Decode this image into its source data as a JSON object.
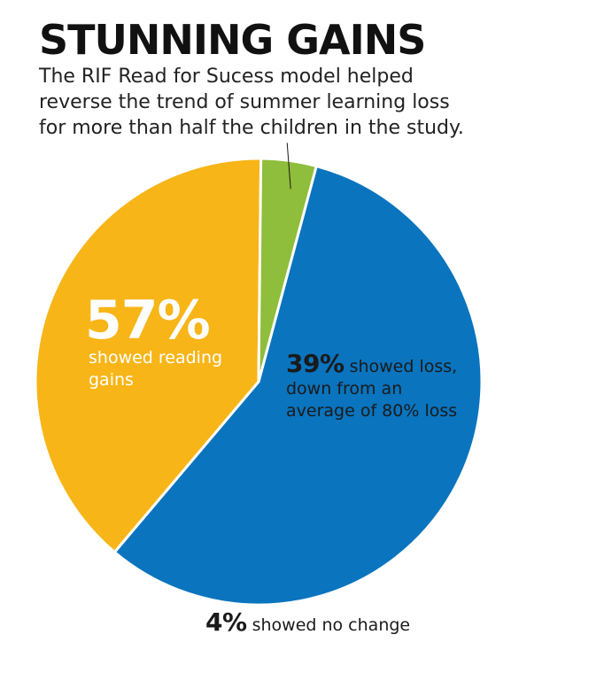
{
  "header": {
    "title": "STUNNING GAINS",
    "subtitle_lines": [
      "The RIF Read for Sucess model helped",
      "reverse the trend of summer learning loss",
      "for more than half the children in the study."
    ]
  },
  "chart_data": {
    "type": "pie",
    "title": "STUNNING GAINS",
    "slices": [
      {
        "label": "showed reading gains",
        "value": 57,
        "value_label": "57%",
        "text_lines": [
          "showed reading",
          "gains"
        ],
        "color": "#0a74be"
      },
      {
        "label": "showed loss, down from an average of 80% loss",
        "value": 39,
        "value_label": "39%",
        "text_lines": [
          " showed loss,",
          "down from an",
          "average of 80% loss"
        ],
        "color": "#f7b518"
      },
      {
        "label": "showed no change",
        "value": 4,
        "value_label": "4%",
        "text_lines": [
          " showed no change"
        ],
        "color": "#8fbd3c"
      }
    ],
    "legend": "none"
  }
}
